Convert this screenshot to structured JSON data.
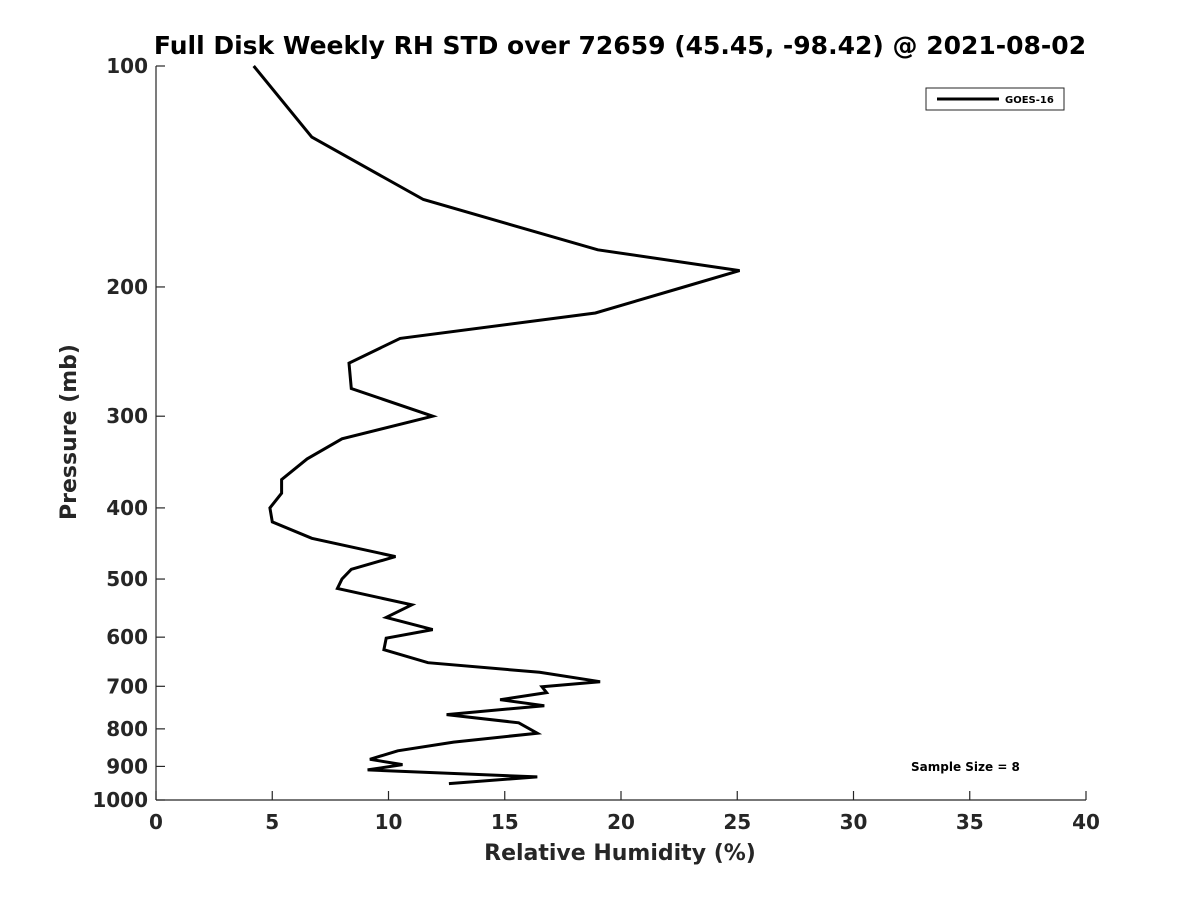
{
  "chart_data": {
    "type": "line",
    "title": "Full Disk Weekly RH STD over 72659 (45.45, -98.42) @ 2021-08-02",
    "xlabel": "Relative Humidity (%)",
    "ylabel": "Pressure (mb)",
    "xlim": [
      0,
      40
    ],
    "ylim": [
      100,
      1000
    ],
    "yscale": "log",
    "y_reversed": true,
    "xticks": [
      0,
      5,
      10,
      15,
      20,
      25,
      30,
      35,
      40
    ],
    "yticks": [
      100,
      200,
      300,
      400,
      500,
      600,
      700,
      800,
      900,
      1000
    ],
    "legend": {
      "placement": "top-right",
      "entries": [
        "GOES-16"
      ]
    },
    "annotation": "Sample Size = 8",
    "grid": false,
    "series": [
      {
        "name": "GOES-16",
        "color": "#000000",
        "points": [
          [
            4.2,
            100
          ],
          [
            6.7,
            125
          ],
          [
            11.5,
            152
          ],
          [
            19.0,
            178
          ],
          [
            25.1,
            190
          ],
          [
            22.7,
            200
          ],
          [
            18.9,
            217
          ],
          [
            10.5,
            235
          ],
          [
            8.3,
            254
          ],
          [
            8.4,
            275
          ],
          [
            11.9,
            300
          ],
          [
            8.0,
            322
          ],
          [
            6.5,
            343
          ],
          [
            5.4,
            366
          ],
          [
            5.4,
            382
          ],
          [
            4.9,
            400
          ],
          [
            5.0,
            418
          ],
          [
            6.7,
            440
          ],
          [
            10.3,
            466
          ],
          [
            8.4,
            485
          ],
          [
            8.0,
            500
          ],
          [
            7.8,
            515
          ],
          [
            11.0,
            542
          ],
          [
            9.9,
            564
          ],
          [
            11.9,
            586
          ],
          [
            9.9,
            602
          ],
          [
            9.8,
            624
          ],
          [
            11.7,
            650
          ],
          [
            16.5,
            670
          ],
          [
            19.1,
            690
          ],
          [
            16.6,
            701
          ],
          [
            16.8,
            714
          ],
          [
            14.8,
            730
          ],
          [
            16.7,
            744
          ],
          [
            12.5,
            765
          ],
          [
            15.6,
            785
          ],
          [
            16.4,
            811
          ],
          [
            12.8,
            834
          ],
          [
            10.4,
            857
          ],
          [
            9.2,
            880
          ],
          [
            10.6,
            895
          ],
          [
            9.1,
            910
          ],
          [
            16.4,
            930
          ],
          [
            12.6,
            950
          ]
        ]
      }
    ]
  }
}
